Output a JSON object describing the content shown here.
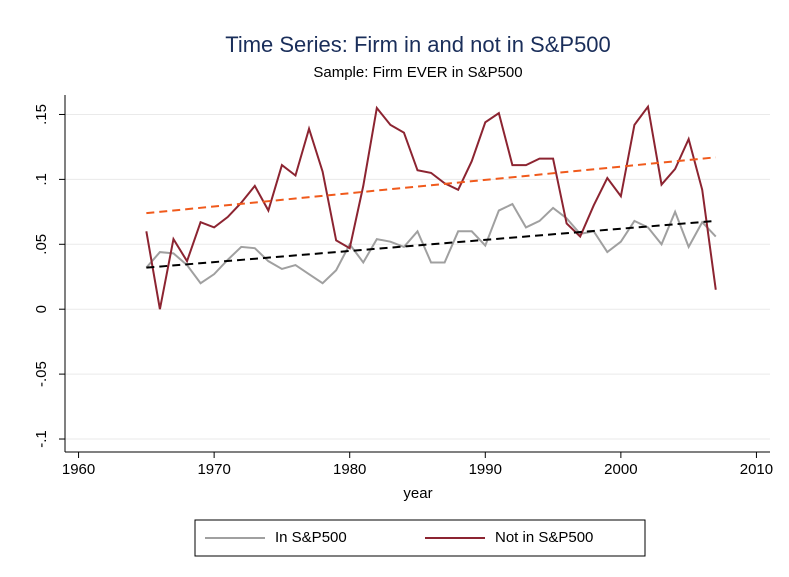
{
  "chart_data": {
    "type": "line",
    "title": "Time Series: Firm in and not in S&P500",
    "subtitle": "Sample: Firm EVER in S&P500",
    "x_label": "year",
    "x": [
      1965,
      1966,
      1967,
      1968,
      1969,
      1970,
      1971,
      1972,
      1973,
      1974,
      1975,
      1976,
      1977,
      1978,
      1979,
      1980,
      1981,
      1982,
      1983,
      1984,
      1985,
      1986,
      1987,
      1988,
      1989,
      1990,
      1991,
      1992,
      1993,
      1994,
      1995,
      1996,
      1997,
      1998,
      1999,
      2000,
      2001,
      2002,
      2003,
      2004,
      2005,
      2006,
      2007
    ],
    "series": [
      {
        "name": "In S&P500",
        "color": "#a0a0a0",
        "values": [
          0.032,
          0.044,
          0.043,
          0.034,
          0.02,
          0.027,
          0.038,
          0.048,
          0.047,
          0.037,
          0.031,
          0.034,
          0.027,
          0.02,
          0.03,
          0.05,
          0.036,
          0.054,
          0.052,
          0.048,
          0.06,
          0.036,
          0.036,
          0.06,
          0.06,
          0.049,
          0.076,
          0.081,
          0.063,
          0.068,
          0.078,
          0.07,
          0.058,
          0.06,
          0.044,
          0.052,
          0.068,
          0.063,
          0.05,
          0.075,
          0.048,
          0.067,
          0.056
        ]
      },
      {
        "name": "Not in S&P500",
        "color": "#8c2431",
        "values": [
          0.06,
          0.0,
          0.054,
          0.037,
          0.067,
          0.063,
          0.071,
          0.082,
          0.095,
          0.076,
          0.111,
          0.103,
          0.139,
          0.106,
          0.053,
          0.047,
          0.095,
          0.155,
          0.142,
          0.136,
          0.107,
          0.105,
          0.097,
          0.092,
          0.114,
          0.144,
          0.151,
          0.111,
          0.111,
          0.116,
          0.116,
          0.066,
          0.056,
          0.08,
          0.101,
          0.087,
          0.142,
          0.156,
          0.096,
          0.108,
          0.131,
          0.092,
          0.015
        ]
      }
    ],
    "fit_lines": [
      {
        "color": "#000000",
        "x": [
          1965,
          2007
        ],
        "values": [
          0.032,
          0.068
        ]
      },
      {
        "color": "#f05a1c",
        "x": [
          1965,
          2007
        ],
        "values": [
          0.074,
          0.117
        ]
      }
    ],
    "xlim": [
      1959,
      2011
    ],
    "xticks": [
      1960,
      1970,
      1980,
      1990,
      2000,
      2010
    ],
    "ylim": [
      -0.11,
      0.165
    ],
    "yticks": [
      {
        "value": -0.1,
        "label": "-.1"
      },
      {
        "value": -0.05,
        "label": "-.05"
      },
      0,
      {
        "value": 0.05,
        "label": ".05"
      },
      {
        "value": 0.1,
        "label": ".1"
      },
      {
        "value": 0.15,
        "label": ".15"
      }
    ],
    "grid": true
  }
}
